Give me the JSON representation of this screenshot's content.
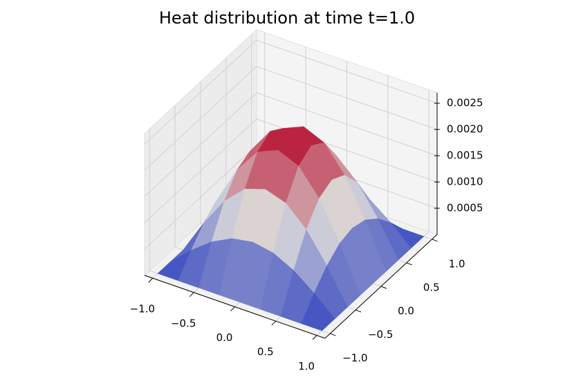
{
  "chart_data": {
    "type": "surface3d",
    "title": "Heat distribution at time t=1.0",
    "x": [
      -1,
      -0.75,
      -0.5,
      -0.25,
      0,
      0.25,
      0.5,
      0.75,
      1
    ],
    "y": [
      -1,
      -0.75,
      -0.5,
      -0.25,
      0,
      0.25,
      0.5,
      0.75,
      1
    ],
    "z": [
      [
        0,
        0,
        0,
        0,
        0,
        0,
        0,
        0,
        0
      ],
      [
        0,
        0.000351,
        0.000649,
        0.000849,
        0.000918,
        0.000849,
        0.000649,
        0.000351,
        0
      ],
      [
        0,
        0.000649,
        0.0012,
        0.001568,
        0.001697,
        0.001568,
        0.0012,
        0.000649,
        0
      ],
      [
        0,
        0.000849,
        0.001568,
        0.002049,
        0.002217,
        0.002049,
        0.001568,
        0.000849,
        0
      ],
      [
        0,
        0.000918,
        0.001697,
        0.002217,
        0.0024,
        0.002217,
        0.001697,
        0.000918,
        0
      ],
      [
        0,
        0.000849,
        0.001568,
        0.002049,
        0.002217,
        0.002049,
        0.001568,
        0.000849,
        0
      ],
      [
        0,
        0.000649,
        0.0012,
        0.001568,
        0.001697,
        0.001568,
        0.0012,
        0.000649,
        0
      ],
      [
        0,
        0.000351,
        0.000649,
        0.000849,
        0.000918,
        0.000849,
        0.000649,
        0.000351,
        0
      ],
      [
        0,
        0,
        0,
        0,
        0,
        0,
        0,
        0,
        0
      ]
    ],
    "xlim": [
      -1.1,
      1.1
    ],
    "ylim": [
      -1.1,
      1.1
    ],
    "zlim": [
      0,
      0.0027
    ],
    "xticks": [
      {
        "value": -1,
        "label": "−1.0"
      },
      {
        "value": -0.5,
        "label": "−0.5"
      },
      {
        "value": 0,
        "label": "0.0"
      },
      0.5,
      {
        "value": 1,
        "label": "1.0"
      }
    ],
    "yticks": [
      {
        "value": -1,
        "label": "−1.0"
      },
      {
        "value": -0.5,
        "label": "−0.5"
      },
      {
        "value": 0,
        "label": "0.0"
      },
      0.5,
      {
        "value": 1,
        "label": "1.0"
      }
    ],
    "zticks": [
      0.0005,
      {
        "value": 0.001,
        "label": "0.0010"
      },
      0.0015,
      {
        "value": 0.002,
        "label": "0.0020"
      },
      0.0025
    ],
    "colormap": "coolwarm",
    "grid": true
  }
}
